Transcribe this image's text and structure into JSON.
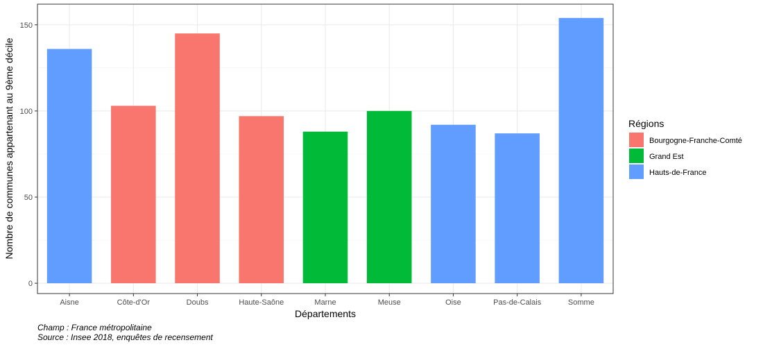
{
  "chart_data": {
    "type": "bar",
    "categories": [
      "Aisne",
      "Côte-d'Or",
      "Doubs",
      "Haute-Saône",
      "Marne",
      "Meuse",
      "Oise",
      "Pas-de-Calais",
      "Somme"
    ],
    "values": [
      136,
      103,
      145,
      97,
      88,
      100,
      92,
      87,
      154
    ],
    "groups": [
      "Hauts-de-France",
      "Bourgogne-Franche-Comté",
      "Bourgogne-Franche-Comté",
      "Bourgogne-Franche-Comté",
      "Grand Est",
      "Grand Est",
      "Hauts-de-France",
      "Hauts-de-France",
      "Hauts-de-France"
    ],
    "xlabel": "Départements",
    "ylabel": "Nombre de communes appartenant au 9ème décile",
    "ylim": [
      -6,
      162
    ],
    "yticks": [
      0,
      50,
      100,
      150
    ],
    "grid": true,
    "legend": {
      "title": "Régions",
      "position": "right",
      "entries": [
        {
          "name": "Bourgogne-Franche-Comté",
          "color": "#F8766D"
        },
        {
          "name": "Grand Est",
          "color": "#00BA38"
        },
        {
          "name": "Hauts-de-France",
          "color": "#619CFF"
        }
      ]
    }
  },
  "captions": {
    "champ": "Champ : France métropolitaine",
    "source": "Source : Insee 2018, enquêtes de recensement"
  }
}
